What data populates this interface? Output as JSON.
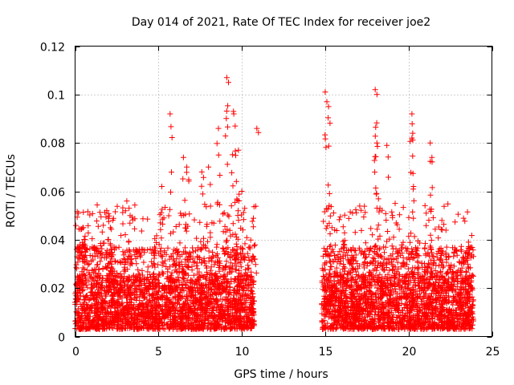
{
  "chart_data": {
    "type": "scatter",
    "title": "Day 014 of 2021, Rate Of TEC Index for receiver joe2",
    "xlabel": "GPS time / hours",
    "ylabel": "ROTI / TECUs",
    "xlim": [
      0,
      25
    ],
    "ylim": [
      0,
      0.12
    ],
    "x_ticks": [
      0,
      5,
      10,
      15,
      20,
      25
    ],
    "x_tick_labels": [
      "0",
      "5",
      "10",
      "15",
      "20",
      "25"
    ],
    "y_ticks": [
      0,
      0.02,
      0.04,
      0.06,
      0.08,
      0.1,
      0.12
    ],
    "y_tick_labels": [
      "0",
      "0.02",
      "0.04",
      "0.06",
      "0.08",
      "0.1",
      "0.12"
    ],
    "grid": true,
    "marker": "+",
    "series": [
      {
        "name": "ROTI",
        "color": "#ff0000",
        "data_ranges_hours": [
          [
            0,
            10.75
          ],
          [
            14.8,
            23.9
          ]
        ],
        "typical_range": [
          0.003,
          0.025
        ],
        "points": [
          [
            0.5,
            0.045
          ],
          [
            0.6,
            0.04
          ],
          [
            1.9,
            0.052
          ],
          [
            2.0,
            0.04
          ],
          [
            3.1,
            0.056
          ],
          [
            3.3,
            0.05
          ],
          [
            5.2,
            0.062
          ],
          [
            5.7,
            0.092
          ],
          [
            6.5,
            0.074
          ],
          [
            6.7,
            0.07
          ],
          [
            7.6,
            0.068
          ],
          [
            8.0,
            0.07
          ],
          [
            8.6,
            0.086
          ],
          [
            9.1,
            0.107
          ],
          [
            9.2,
            0.105
          ],
          [
            9.5,
            0.093
          ],
          [
            9.6,
            0.087
          ],
          [
            9.8,
            0.077
          ],
          [
            10.0,
            0.06
          ],
          [
            10.9,
            0.086
          ],
          [
            15.0,
            0.101
          ],
          [
            15.1,
            0.097
          ],
          [
            15.2,
            0.095
          ],
          [
            18.0,
            0.102
          ],
          [
            18.1,
            0.1
          ],
          [
            18.1,
            0.08
          ],
          [
            18.7,
            0.079
          ],
          [
            20.2,
            0.092
          ],
          [
            20.2,
            0.082
          ],
          [
            20.3,
            0.062
          ],
          [
            21.3,
            0.08
          ],
          [
            21.4,
            0.074
          ],
          [
            22.0,
            0.048
          ],
          [
            23.6,
            0.039
          ]
        ]
      }
    ]
  }
}
